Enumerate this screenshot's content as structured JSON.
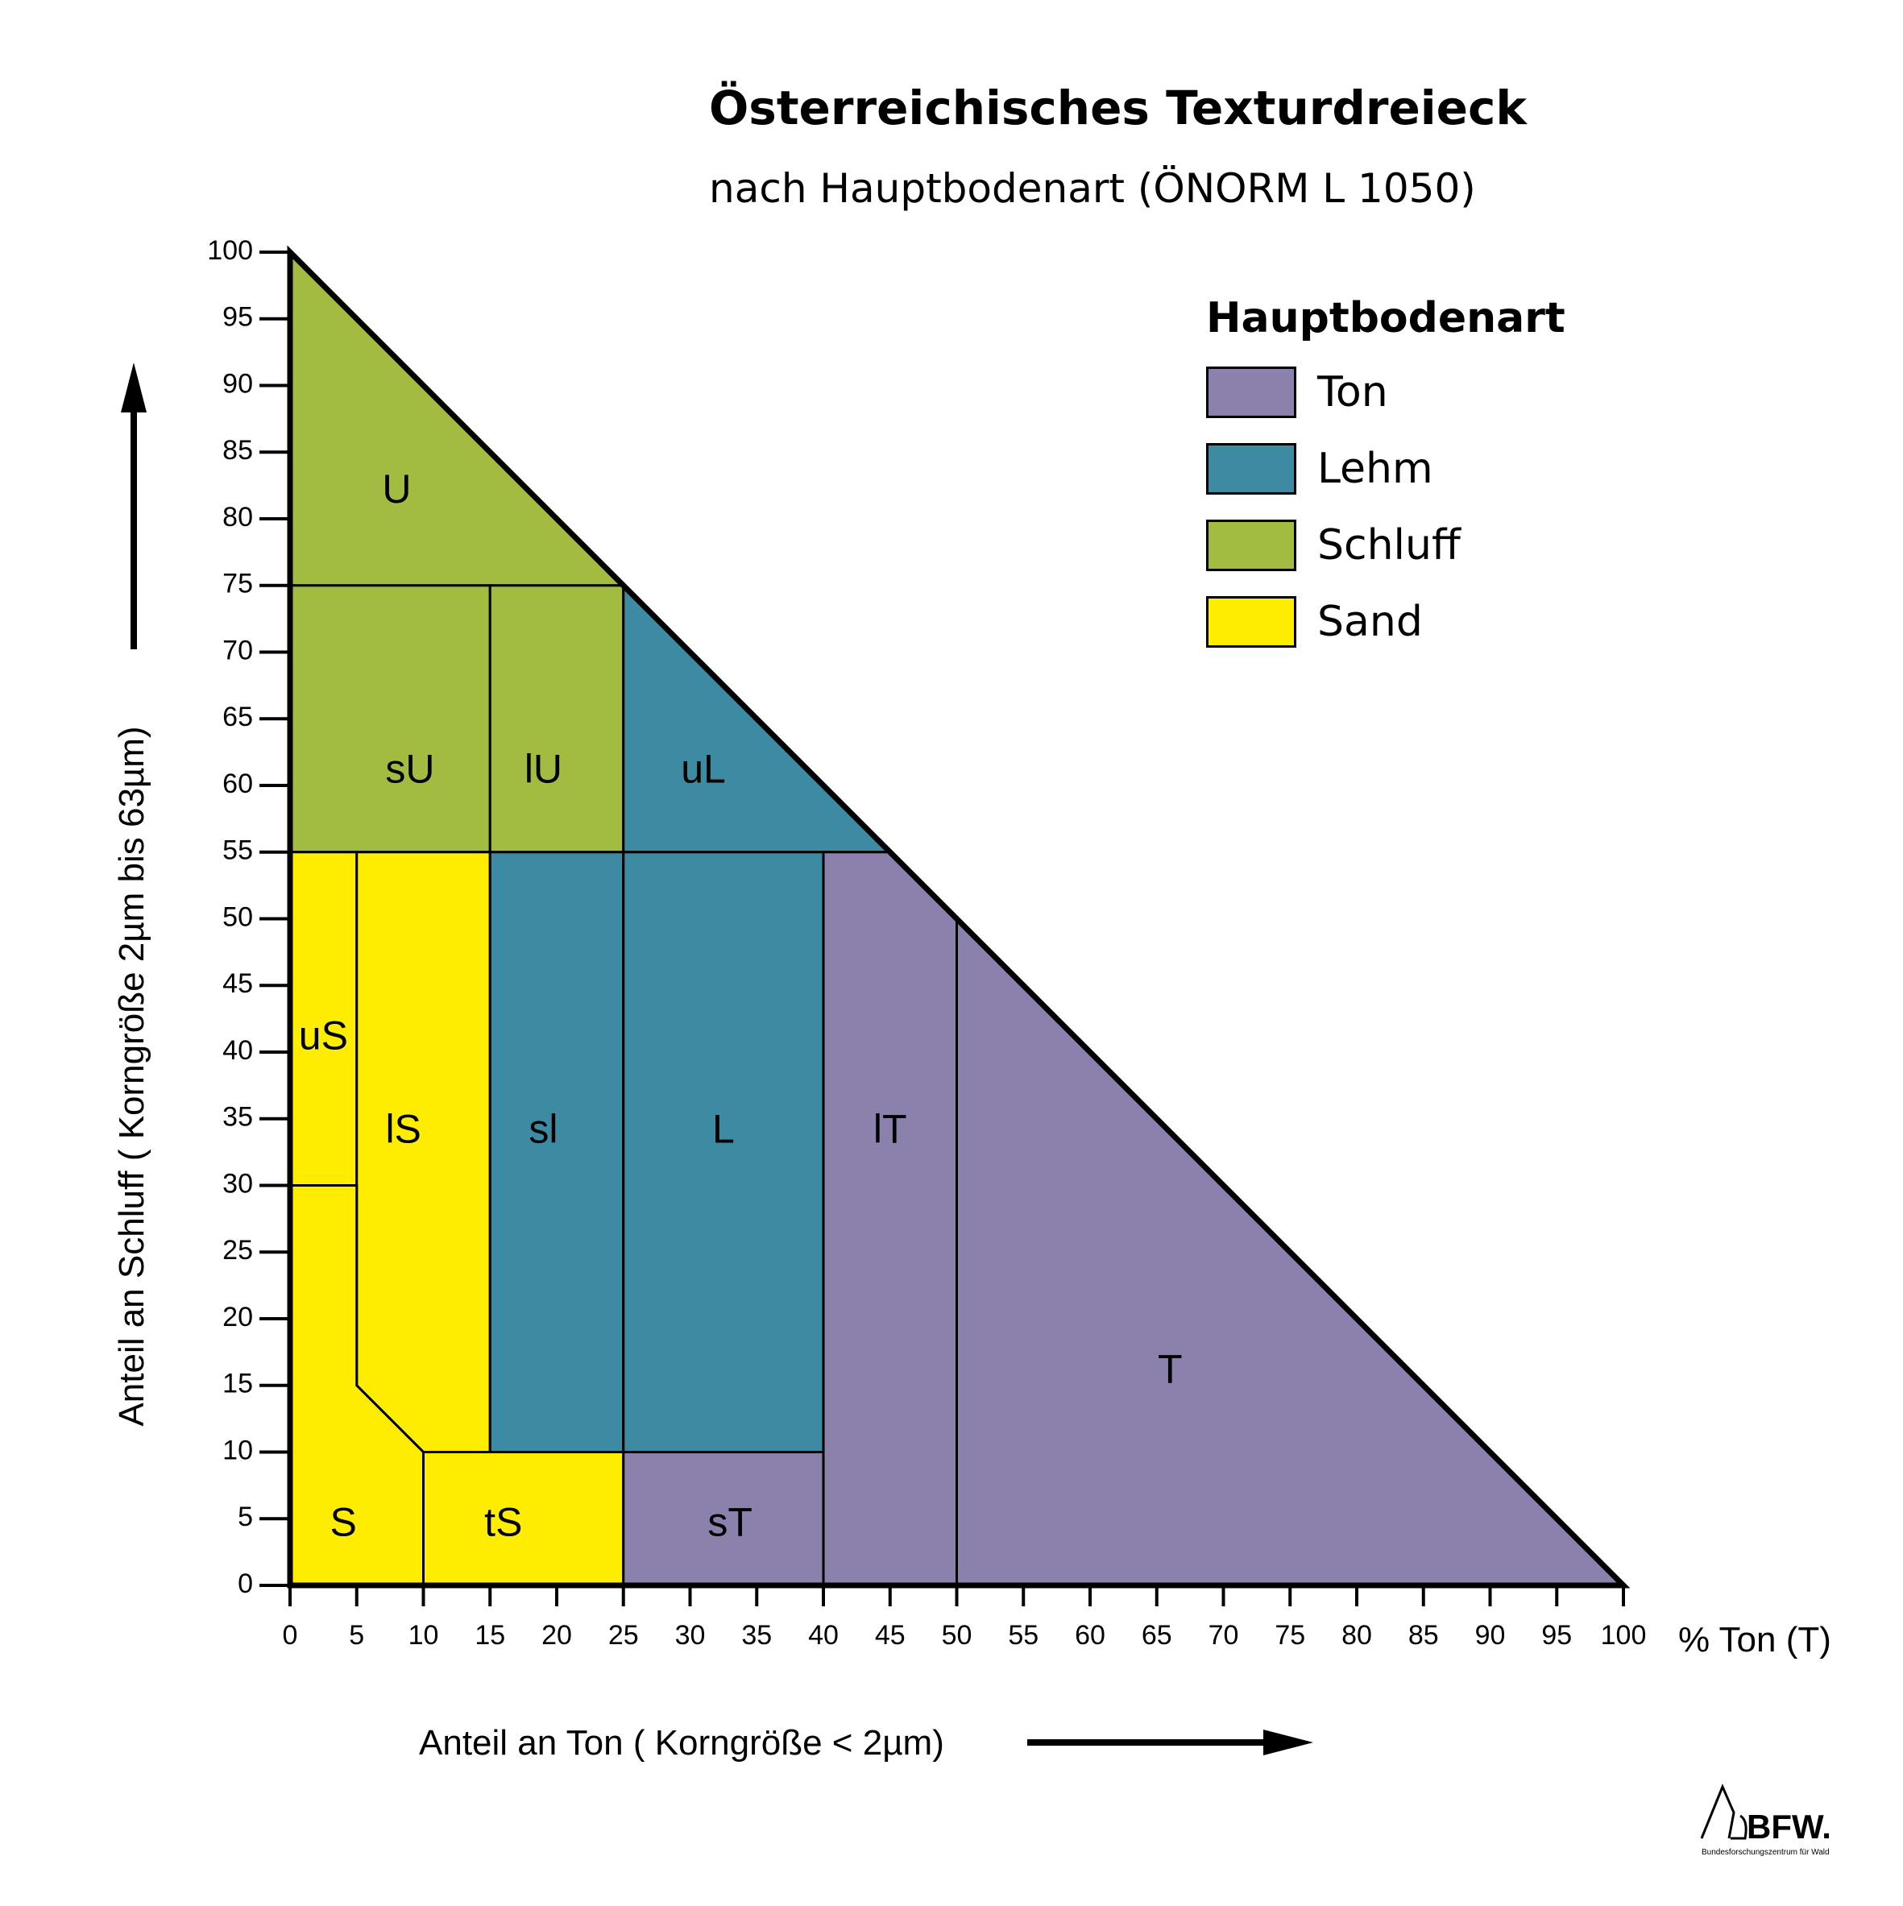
{
  "title": "Österreichisches Texturdreieck",
  "subtitle": "nach Hauptbodenart (ÖNORM L 1050)",
  "legend": {
    "title": "Hauptbodenart",
    "items": [
      {
        "label": "Ton",
        "color": "#8c80ac"
      },
      {
        "label": "Lehm",
        "color": "#3d8ba3"
      },
      {
        "label": "Schluff",
        "color": "#a2bc42"
      },
      {
        "label": "Sand",
        "color": "#ffed00"
      }
    ]
  },
  "axes": {
    "x_label": "Anteil an Ton ( Korngröße < 2µm)",
    "x_unit_label": "% Ton (T)",
    "y_label": "Anteil an Schluff ( Korngröße 2µm bis 63µm)",
    "x_ticks": [
      0,
      5,
      10,
      15,
      20,
      25,
      30,
      35,
      40,
      45,
      50,
      55,
      60,
      65,
      70,
      75,
      80,
      85,
      90,
      95,
      100
    ],
    "y_ticks": [
      0,
      5,
      10,
      15,
      20,
      25,
      30,
      35,
      40,
      45,
      50,
      55,
      60,
      65,
      70,
      75,
      80,
      85,
      90,
      95,
      100
    ]
  },
  "regions": [
    {
      "label": "U",
      "group": "Schluff",
      "points": [
        [
          0,
          75
        ],
        [
          0,
          100
        ],
        [
          25,
          75
        ]
      ],
      "label_at": [
        8,
        82
      ]
    },
    {
      "label": "sU",
      "group": "Schluff",
      "points": [
        [
          0,
          55
        ],
        [
          15,
          55
        ],
        [
          15,
          75
        ],
        [
          0,
          75
        ]
      ],
      "label_at": [
        9,
        61
      ]
    },
    {
      "label": "lU",
      "group": "Schluff",
      "points": [
        [
          15,
          55
        ],
        [
          25,
          55
        ],
        [
          25,
          75
        ],
        [
          15,
          75
        ]
      ],
      "label_at": [
        19,
        61
      ]
    },
    {
      "label": "uL",
      "group": "Lehm",
      "points": [
        [
          25,
          55
        ],
        [
          45,
          55
        ],
        [
          25,
          75
        ]
      ],
      "label_at": [
        31,
        61
      ]
    },
    {
      "label": "uS",
      "group": "Sand",
      "points": [
        [
          0,
          30
        ],
        [
          5,
          30
        ],
        [
          5,
          55
        ],
        [
          0,
          55
        ]
      ],
      "label_at": [
        2.5,
        41
      ]
    },
    {
      "label": "lS",
      "group": "Sand",
      "points": [
        [
          5,
          15
        ],
        [
          10,
          10
        ],
        [
          15,
          10
        ],
        [
          15,
          55
        ],
        [
          5,
          55
        ]
      ],
      "label_at": [
        8.5,
        34
      ]
    },
    {
      "label": "S",
      "group": "Sand",
      "points": [
        [
          0,
          0
        ],
        [
          10,
          0
        ],
        [
          10,
          10
        ],
        [
          5,
          15
        ],
        [
          5,
          30
        ],
        [
          0,
          30
        ]
      ],
      "label_at": [
        4,
        4.5
      ]
    },
    {
      "label": "tS",
      "group": "Sand",
      "points": [
        [
          10,
          0
        ],
        [
          25,
          0
        ],
        [
          25,
          10
        ],
        [
          10,
          10
        ]
      ],
      "label_at": [
        16,
        4.5
      ]
    },
    {
      "label": "sl",
      "group": "Lehm",
      "points": [
        [
          15,
          10
        ],
        [
          25,
          10
        ],
        [
          25,
          55
        ],
        [
          15,
          55
        ]
      ],
      "label_at": [
        19,
        34
      ]
    },
    {
      "label": "L",
      "group": "Lehm",
      "points": [
        [
          25,
          10
        ],
        [
          40,
          10
        ],
        [
          40,
          55
        ],
        [
          25,
          55
        ]
      ],
      "label_at": [
        32.5,
        34
      ]
    },
    {
      "label": "sT",
      "group": "Ton",
      "points": [
        [
          25,
          0
        ],
        [
          40,
          0
        ],
        [
          40,
          10
        ],
        [
          25,
          10
        ]
      ],
      "label_at": [
        33,
        4.5
      ]
    },
    {
      "label": "lT",
      "group": "Ton",
      "points": [
        [
          40,
          0
        ],
        [
          50,
          0
        ],
        [
          50,
          50
        ],
        [
          45,
          55
        ],
        [
          40,
          55
        ]
      ],
      "label_at": [
        45,
        34
      ]
    },
    {
      "label": "T",
      "group": "Ton",
      "points": [
        [
          50,
          0
        ],
        [
          100,
          0
        ],
        [
          50,
          50
        ]
      ],
      "label_at": [
        66,
        16
      ]
    }
  ]
}
